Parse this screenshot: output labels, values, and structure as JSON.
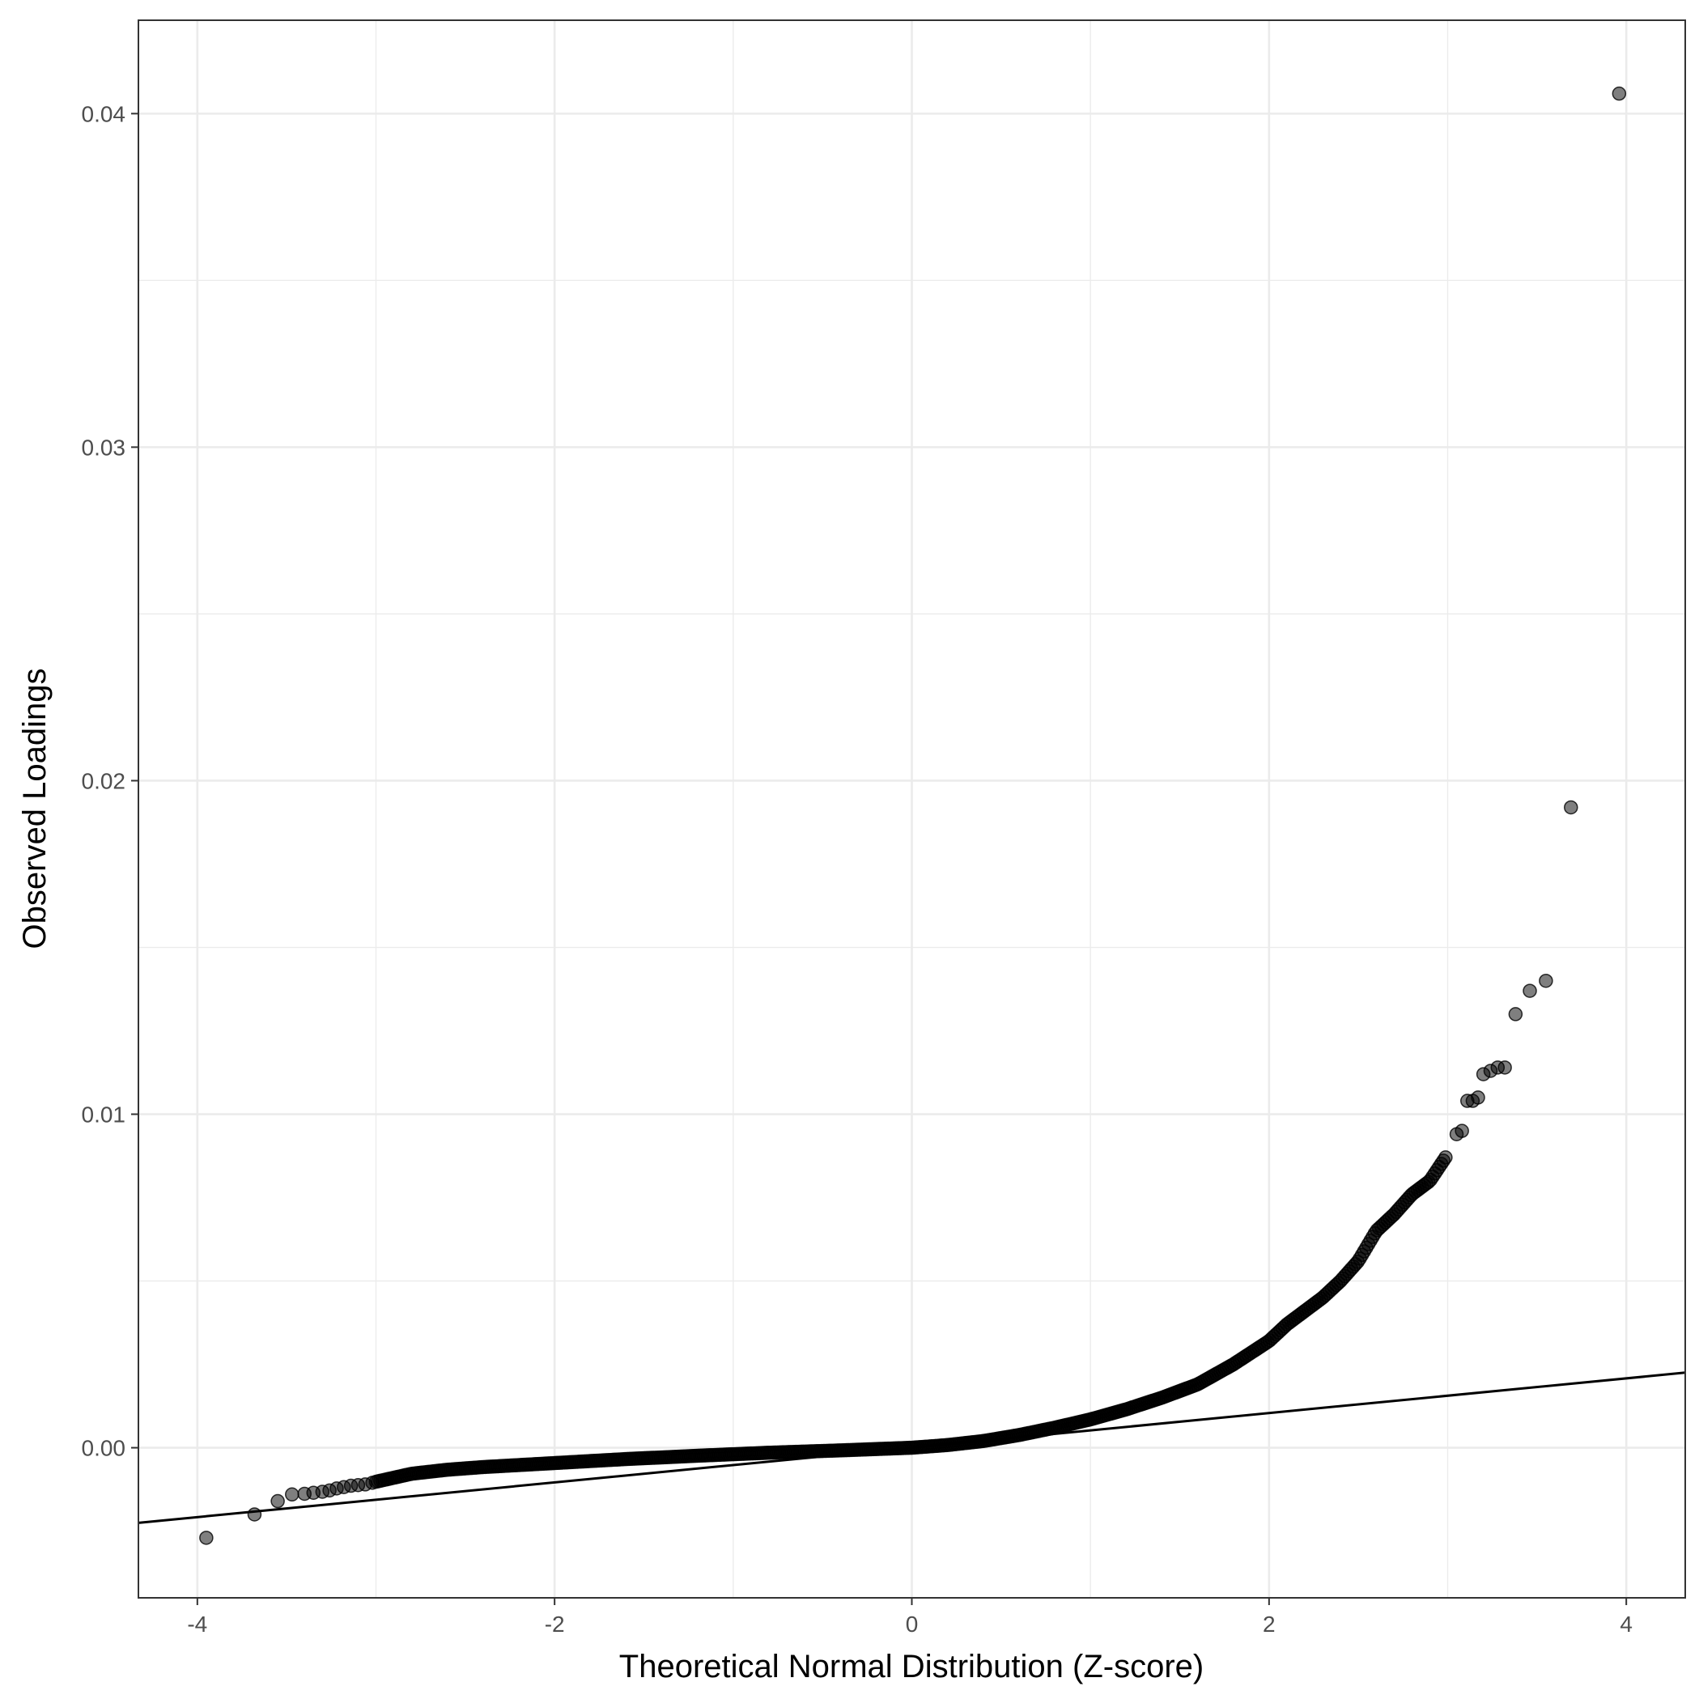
{
  "chart_data": {
    "type": "scatter",
    "title": "",
    "xlabel": "Theoretical Normal Distribution (Z-score)",
    "ylabel": "Observed Loadings",
    "xlim": [
      -4.33,
      4.33
    ],
    "ylim": [
      -0.0045,
      0.0428
    ],
    "x_ticks": [
      -4,
      -2,
      0,
      2,
      4
    ],
    "x_tick_labels": [
      "-4",
      "-2",
      "0",
      "2",
      "4"
    ],
    "y_ticks": [
      0,
      0.01,
      0.02,
      0.03,
      0.04
    ],
    "y_tick_labels": [
      "0.00",
      "0.01",
      "0.02",
      "0.03",
      "0.04"
    ],
    "grid": true,
    "point_color": "#000000",
    "point_opacity": 0.5,
    "reference_line": {
      "intercept": 0.0,
      "slope": 0.00052,
      "color": "#000000"
    },
    "tail_points": [
      [
        -3.95,
        -0.0027
      ],
      [
        -3.68,
        -0.002
      ],
      [
        -3.55,
        -0.0016
      ],
      [
        -3.47,
        -0.0014
      ],
      [
        -3.4,
        -0.00138
      ],
      [
        -3.35,
        -0.00135
      ],
      [
        -3.3,
        -0.00132
      ],
      [
        -3.26,
        -0.00128
      ],
      [
        -3.22,
        -0.00122
      ],
      [
        -3.18,
        -0.00118
      ],
      [
        -3.14,
        -0.00114
      ],
      [
        -3.1,
        -0.00112
      ],
      [
        -3.06,
        -0.0011
      ],
      [
        -3.02,
        -0.00105
      ],
      [
        3.05,
        0.0094
      ],
      [
        3.08,
        0.0095
      ],
      [
        3.11,
        0.0104
      ],
      [
        3.14,
        0.0104
      ],
      [
        3.17,
        0.0105
      ],
      [
        3.2,
        0.0112
      ],
      [
        3.24,
        0.0113
      ],
      [
        3.28,
        0.0114
      ],
      [
        3.32,
        0.0114
      ],
      [
        3.38,
        0.013
      ],
      [
        3.46,
        0.0137
      ],
      [
        3.55,
        0.014
      ],
      [
        3.69,
        0.0192
      ],
      [
        3.96,
        0.0406
      ]
    ],
    "body_curve": [
      [
        -3.0,
        -0.00102
      ],
      [
        -2.9,
        -0.0009
      ],
      [
        -2.8,
        -0.00078
      ],
      [
        -2.6,
        -0.00066
      ],
      [
        -2.4,
        -0.00058
      ],
      [
        -2.2,
        -0.00052
      ],
      [
        -2.0,
        -0.00046
      ],
      [
        -1.6,
        -0.00034
      ],
      [
        -1.2,
        -0.00024
      ],
      [
        -0.8,
        -0.00015
      ],
      [
        -0.4,
        -8e-05
      ],
      [
        0.0,
        0.0
      ],
      [
        0.2,
        8e-05
      ],
      [
        0.4,
        0.0002
      ],
      [
        0.6,
        0.00038
      ],
      [
        0.8,
        0.0006
      ],
      [
        1.0,
        0.00085
      ],
      [
        1.2,
        0.00115
      ],
      [
        1.4,
        0.0015
      ],
      [
        1.6,
        0.0019
      ],
      [
        1.8,
        0.0025
      ],
      [
        2.0,
        0.0032
      ],
      [
        2.1,
        0.0037
      ],
      [
        2.2,
        0.0041
      ],
      [
        2.3,
        0.0045
      ],
      [
        2.4,
        0.005
      ],
      [
        2.5,
        0.0056
      ],
      [
        2.6,
        0.0065
      ],
      [
        2.7,
        0.007
      ],
      [
        2.8,
        0.0076
      ],
      [
        2.9,
        0.008
      ],
      [
        3.0,
        0.0088
      ]
    ]
  }
}
